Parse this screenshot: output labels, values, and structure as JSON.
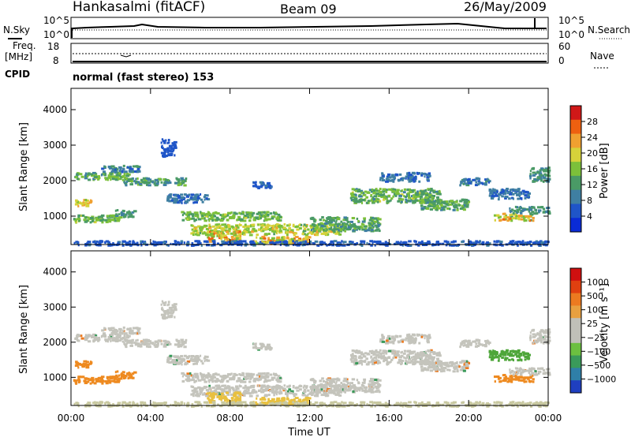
{
  "header": {
    "station": "Hankasalmi (fitACF)",
    "beam": "Beam 09",
    "date": "26/May/2009"
  },
  "top_strips": {
    "nsky_label": "N.Sky",
    "nsearch_label": "N.Search",
    "freq_label_1": "Freq.",
    "freq_label_2": "[MHz]",
    "nave_label": "Nave",
    "cpid_label": "CPID",
    "cpid_text": "normal (fast stereo) 153",
    "noise_ticks": [
      "10^5",
      "10^0"
    ],
    "freq_ticks": [
      "18",
      "8"
    ],
    "nave_ticks": [
      "60",
      "0"
    ]
  },
  "chart_data": [
    {
      "type": "heatmap",
      "name": "power-panel",
      "ylabel": "Slant Range [km]",
      "ylim": [
        200,
        4600
      ],
      "yticks": [
        "1000",
        "2000",
        "3000",
        "4000"
      ],
      "xlim": [
        0,
        24
      ],
      "colorbar_label": "Power [dB]",
      "colorbar_ticks": [
        "28",
        "24",
        "20",
        "16",
        "12",
        "8",
        "4"
      ],
      "colorbar_colors": [
        "#0a2bd6",
        "#1f55c8",
        "#3f7fa2",
        "#4a9a66",
        "#7cc03a",
        "#d6d23a",
        "#f0a030",
        "#ee6010",
        "#d01818"
      ]
    },
    {
      "type": "heatmap",
      "name": "velocity-panel",
      "ylabel": "Slant Range [km]",
      "ylim": [
        200,
        4600
      ],
      "yticks": [
        "1000",
        "2000",
        "3000",
        "4000"
      ],
      "xlim": [
        0,
        24
      ],
      "xlabel": "Time UT",
      "xticks": [
        "00:00",
        "04:00",
        "08:00",
        "12:00",
        "16:00",
        "20:00",
        "00:00"
      ],
      "colorbar_label": "Velocity [m s⁻¹]",
      "colorbar_ticks": [
        "1000",
        "500",
        "100",
        "25",
        "−25",
        "−100",
        "−500",
        "−1000"
      ],
      "colorbar_colors": [
        "#1f3fc0",
        "#2f7fa8",
        "#3a9a5a",
        "#6cc040",
        "#c0c0b8",
        "#c0c0b8",
        "#e8a040",
        "#ec7a20",
        "#e04010",
        "#d01010"
      ]
    }
  ]
}
